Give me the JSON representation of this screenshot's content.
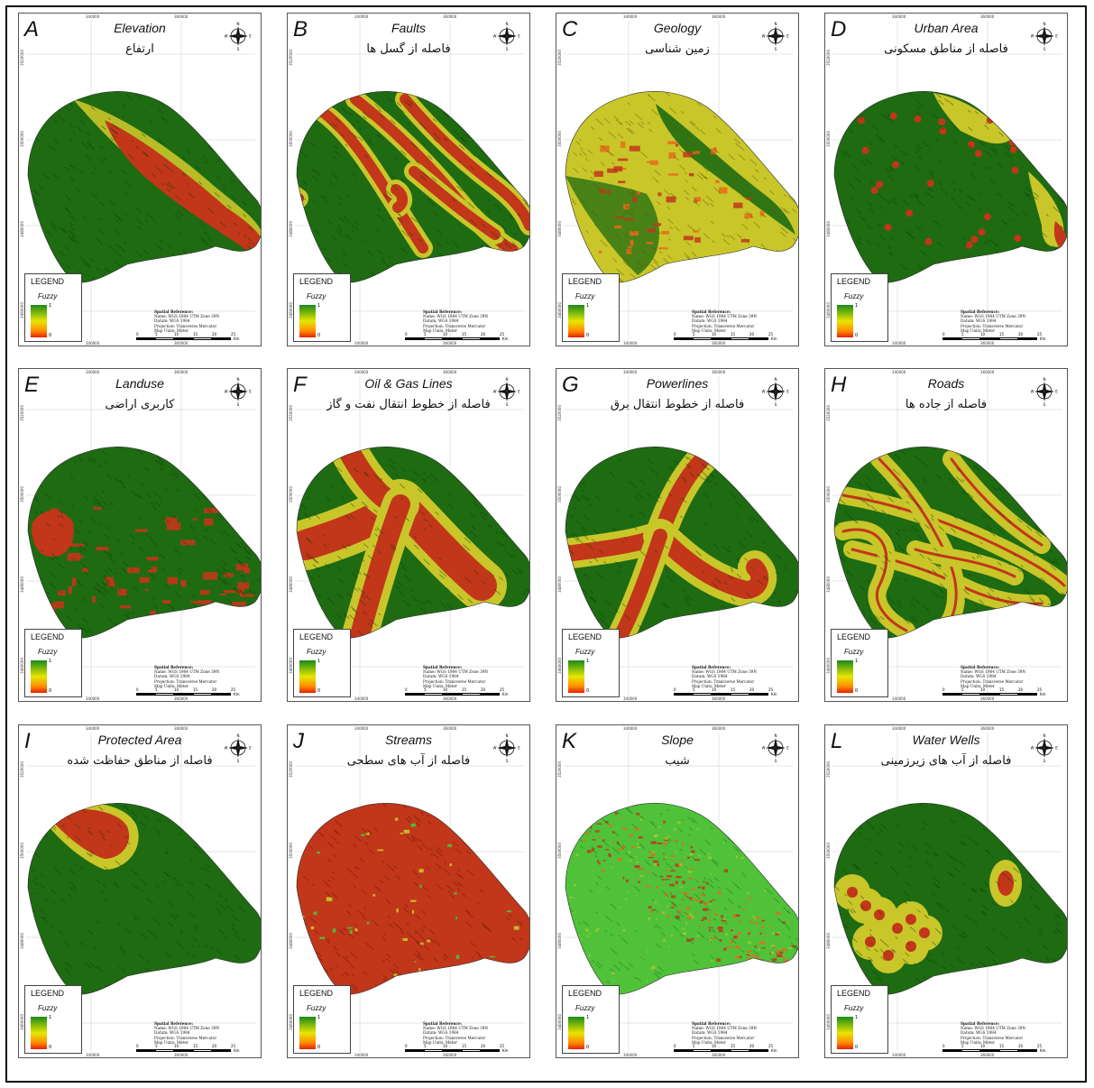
{
  "compass": {
    "n": "N",
    "s": "S",
    "e": "E",
    "w": "W"
  },
  "legend": {
    "title": "LEGEND",
    "subtitle": "Fuzzy",
    "high": "1",
    "low": "0"
  },
  "spatial": {
    "line1": "Spatial Reference:",
    "line2": "Name: WGS 1984 UTM Zone 39N",
    "line3": "Datum: WGS 1984",
    "line4": "Projection: Transverse Mercator",
    "line5": "Map Units: Meter"
  },
  "scale": {
    "ticks": [
      "0",
      "5",
      "10",
      "15",
      "20",
      "25"
    ],
    "unit": "Km"
  },
  "coords": {
    "x1": "340000",
    "x2": "360000",
    "y1": "3520000",
    "y2": "3500000",
    "y3": "3480000",
    "y4": "3460000"
  },
  "colors": {
    "green": "#1e6b12",
    "yellow": "#c9c62a",
    "red": "#c2361a",
    "lightgreen": "#4fc23a",
    "orange": "#e86a1a"
  },
  "panels": [
    {
      "letter": "A",
      "title_en": "Elevation",
      "title_fa": "ارتفاع",
      "pattern": "elevation"
    },
    {
      "letter": "B",
      "title_en": "Faults",
      "title_fa": "فاصله از گسل ها",
      "pattern": "faults"
    },
    {
      "letter": "C",
      "title_en": "Geology",
      "title_fa": "زمین شناسی",
      "pattern": "geology"
    },
    {
      "letter": "D",
      "title_en": "Urban Area",
      "title_fa": "فاصله از مناطق مسکونی",
      "pattern": "urban"
    },
    {
      "letter": "E",
      "title_en": "Landuse",
      "title_fa": "کاربری اراضی",
      "pattern": "landuse"
    },
    {
      "letter": "F",
      "title_en": "Oil & Gas Lines",
      "title_fa": "فاصله از خطوط انتقال نفت و گاز",
      "pattern": "oilgas"
    },
    {
      "letter": "G",
      "title_en": "Powerlines",
      "title_fa": "فاصله از خطوط انتقال برق",
      "pattern": "power"
    },
    {
      "letter": "H",
      "title_en": "Roads",
      "title_fa": "فاصله از جاده ها",
      "pattern": "roads"
    },
    {
      "letter": "I",
      "title_en": "Protected Area",
      "title_fa": "فاصله از مناطق حفاظت شده",
      "pattern": "protected"
    },
    {
      "letter": "J",
      "title_en": "Streams",
      "title_fa": "فاصله از آب های سطحی",
      "pattern": "streams"
    },
    {
      "letter": "K",
      "title_en": "Slope",
      "title_fa": "شیب",
      "pattern": "slope"
    },
    {
      "letter": "L",
      "title_en": "Water Wells",
      "title_fa": "فاصله از آب های زیرزمینی",
      "pattern": "wells"
    }
  ]
}
